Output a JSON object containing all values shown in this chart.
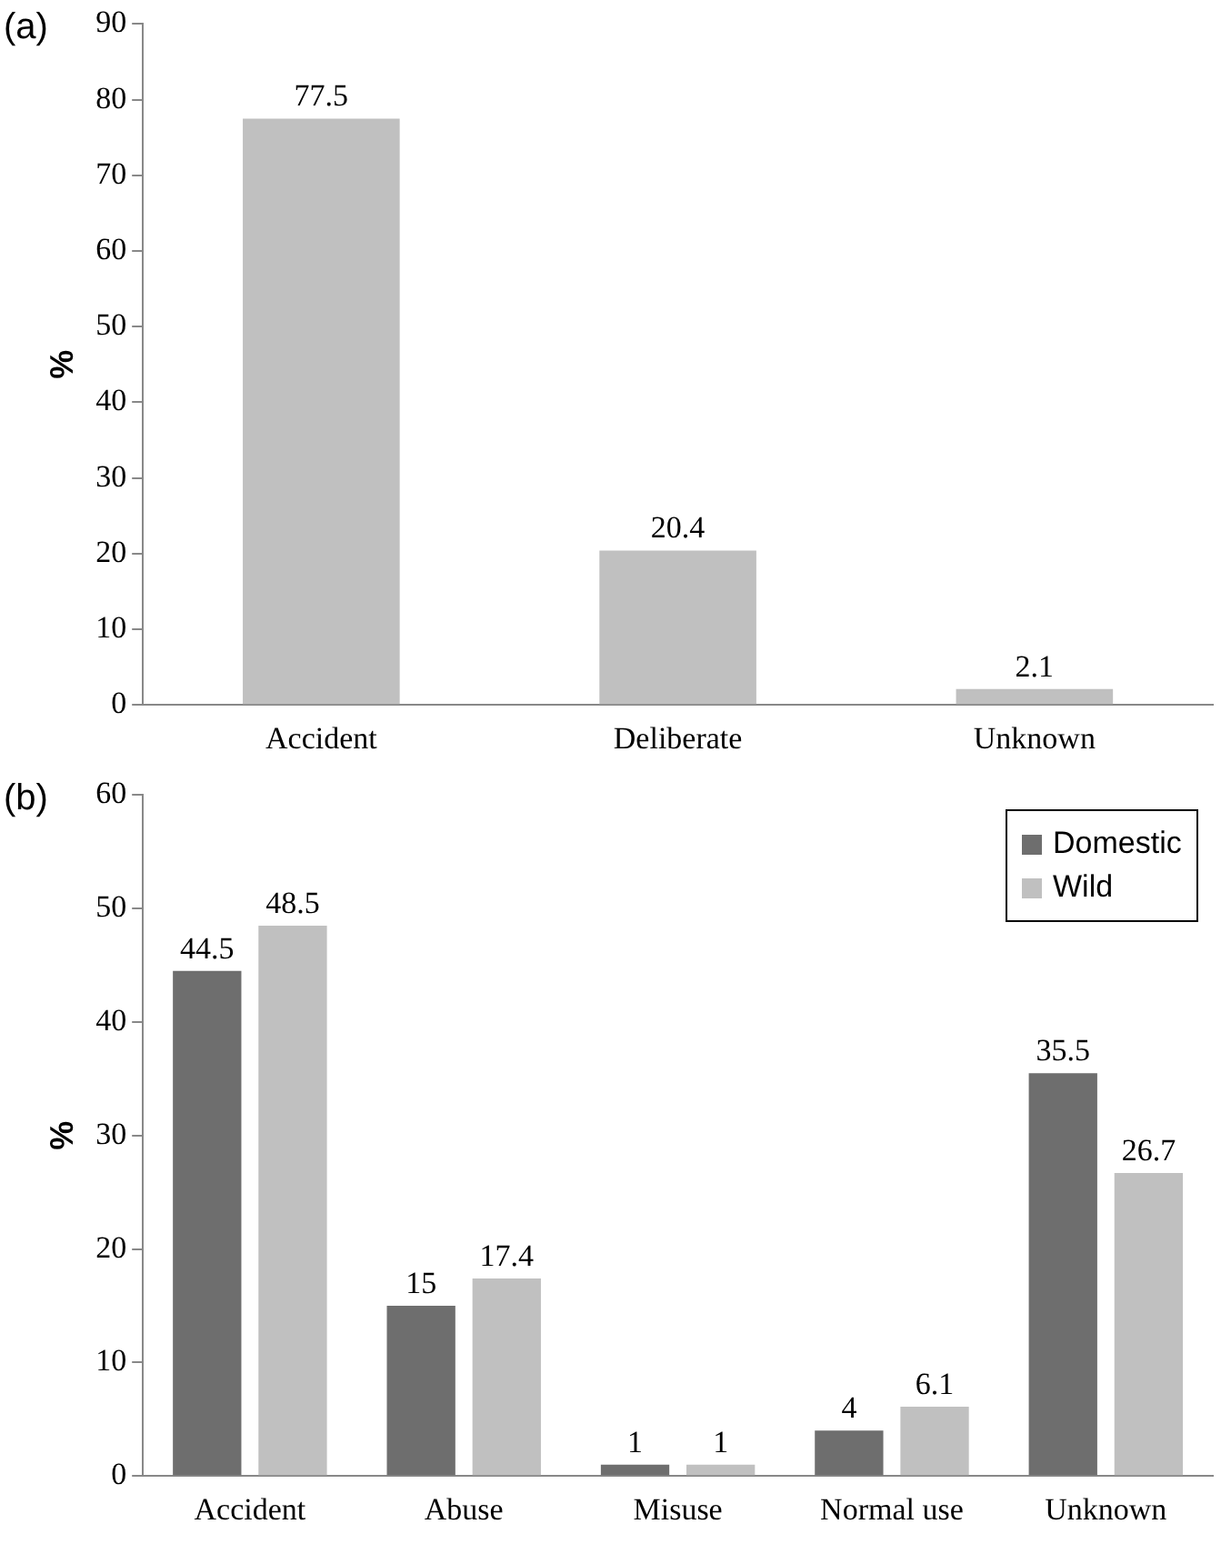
{
  "chart_data": [
    {
      "type": "bar",
      "title": "(a)",
      "ylabel": "%",
      "categories": [
        "Accident",
        "Deliberate",
        "Unknown"
      ],
      "values": [
        77.5,
        20.4,
        2.1
      ],
      "color": "#c0c0c0",
      "ylim": [
        0,
        90
      ],
      "yticks": [
        0,
        10,
        20,
        30,
        40,
        50,
        60,
        70,
        80,
        90
      ],
      "grid": false,
      "legend": false,
      "data_labels": true
    },
    {
      "type": "bar",
      "title": "(b)",
      "ylabel": "%",
      "categories": [
        "Accident",
        "Abuse",
        "Misuse",
        "Normal use",
        "Unknown"
      ],
      "series": [
        {
          "name": "Domestic",
          "color": "#6e6e6e",
          "values": [
            44.5,
            15,
            1,
            4,
            35.5
          ]
        },
        {
          "name": "Wild",
          "color": "#c0c0c0",
          "values": [
            48.5,
            17.4,
            1,
            6.1,
            26.7
          ]
        }
      ],
      "ylim": [
        0,
        60
      ],
      "yticks": [
        0,
        10,
        20,
        30,
        40,
        50,
        60
      ],
      "grid": false,
      "legend": "top right",
      "data_labels": true
    }
  ]
}
